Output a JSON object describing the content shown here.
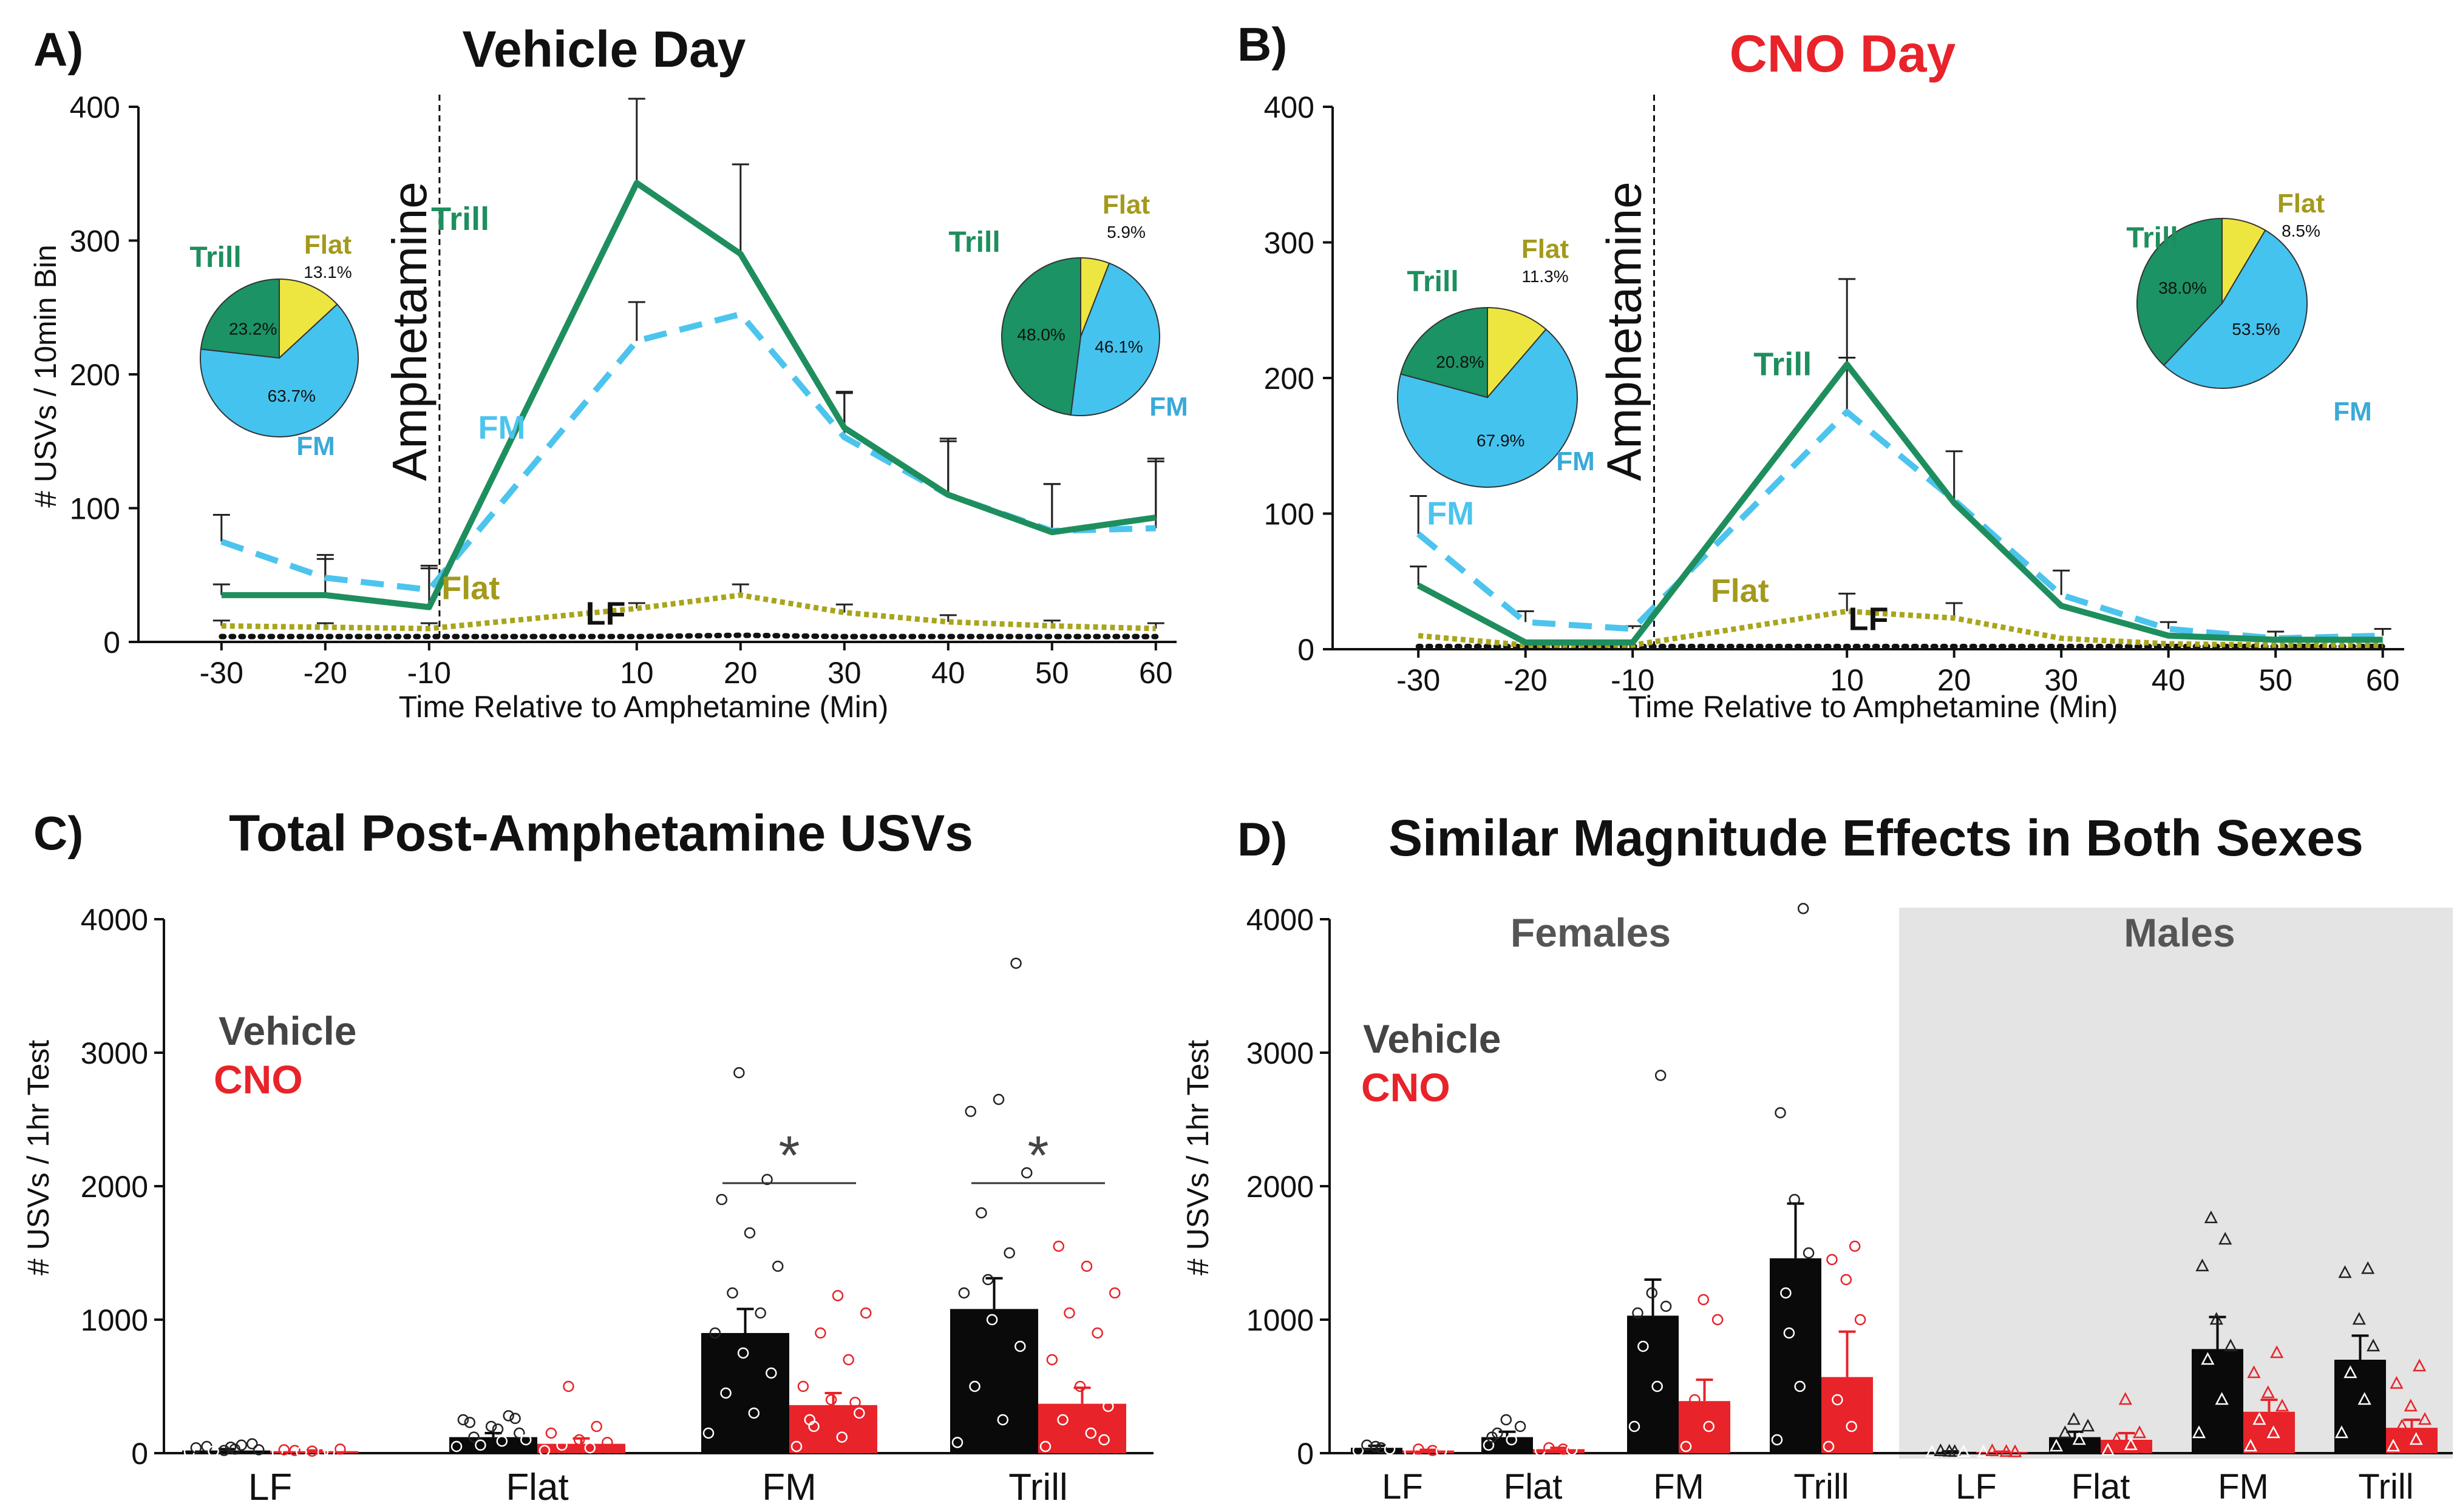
{
  "figure": "USV time-course and totals, Vehicle vs CNO",
  "colors": {
    "trill": "#1f8e5e",
    "fm": "#4cc4ee",
    "flat": "#a9a51c",
    "flat_label": "#a39a1c",
    "lf": "#111111",
    "pie_trill": "#1b9364",
    "pie_fm": "#45c3ef",
    "pie_flat": "#eee640",
    "vehicle": "#0a0a0a",
    "cno": "#e8232a",
    "cno_title": "#e8232a",
    "title": "#111111",
    "males_bg": "#e3e4e3",
    "sex_label": "#555555"
  },
  "chart_data": [
    {
      "panel": "A)",
      "type": "line",
      "title": "Vehicle Day",
      "xlabel": "Time Relative to Amphetamine (Min)",
      "ylabel": "# USVs / 10min Bin",
      "x": [
        -30,
        -20,
        -10,
        10,
        20,
        30,
        40,
        50,
        60
      ],
      "xlim": [
        -38,
        62
      ],
      "ylim": [
        0,
        400
      ],
      "yticks": [
        0,
        100,
        200,
        300,
        400
      ],
      "event": {
        "x": -9,
        "label": "Amphetamine"
      },
      "series": [
        {
          "name": "Trill",
          "values": [
            35,
            35,
            26,
            343,
            290,
            160,
            110,
            82,
            93
          ],
          "errors": [
            8,
            27,
            29,
            63,
            67,
            27,
            40,
            36,
            44
          ],
          "label_x": -7,
          "label_y": 308
        },
        {
          "name": "FM",
          "values": [
            75,
            48,
            39,
            225,
            245,
            153,
            110,
            83,
            85
          ],
          "errors": [
            20,
            17,
            18,
            29,
            0,
            33,
            42,
            35,
            50
          ],
          "label_x": -3,
          "label_y": 152
        },
        {
          "name": "Flat",
          "values": [
            12,
            11,
            10,
            25,
            35,
            22,
            15,
            12,
            10
          ],
          "errors": [
            4,
            3,
            4,
            4,
            8,
            6,
            5,
            4,
            4
          ],
          "label_x": -6,
          "label_y": 32
        },
        {
          "name": "LF",
          "values": [
            4,
            4,
            4,
            4,
            5,
            4,
            4,
            4,
            4
          ],
          "errors": [
            0,
            0,
            0,
            0,
            0,
            0,
            0,
            0,
            0
          ],
          "label_x": 7,
          "label_y": 13
        }
      ],
      "pies": [
        {
          "name": "pre-amphetamine",
          "trill": 23.2,
          "fm": 63.7,
          "flat": 13.1,
          "labels": {
            "trill": "23.2%",
            "fm": "63.7%",
            "flat": "13.1%"
          }
        },
        {
          "name": "post-amphetamine",
          "trill": 48.0,
          "fm": 46.1,
          "flat": 5.9,
          "labels": {
            "trill": "48.0%",
            "fm": "46.1%",
            "flat": "5.9%"
          }
        }
      ]
    },
    {
      "panel": "B)",
      "type": "line",
      "title": "CNO Day",
      "xlabel": "Time Relative to Amphetamine (Min)",
      "ylabel": "",
      "x": [
        -30,
        -20,
        -10,
        10,
        20,
        30,
        40,
        50,
        60
      ],
      "xlim": [
        -38,
        62
      ],
      "ylim": [
        0,
        400
      ],
      "yticks": [
        0,
        100,
        200,
        300,
        400
      ],
      "event": {
        "x": -8,
        "label": "Amphetamine"
      },
      "series": [
        {
          "name": "Trill",
          "values": [
            47,
            5,
            5,
            210,
            108,
            32,
            10,
            7,
            7
          ],
          "errors": [
            14,
            0,
            0,
            63,
            38,
            0,
            0,
            0,
            0
          ],
          "label_x": 4,
          "label_y": 202
        },
        {
          "name": "FM",
          "values": [
            85,
            20,
            15,
            175,
            110,
            40,
            15,
            8,
            10
          ],
          "errors": [
            28,
            8,
            2,
            40,
            0,
            18,
            5,
            5,
            5
          ],
          "label_x": -27,
          "label_y": 92
        },
        {
          "name": "Flat",
          "values": [
            10,
            3,
            3,
            28,
            23,
            8,
            4,
            3,
            3
          ],
          "errors": [
            0,
            0,
            0,
            13,
            11,
            0,
            0,
            0,
            0
          ],
          "label_x": 0,
          "label_y": 35
        },
        {
          "name": "LF",
          "values": [
            2,
            2,
            2,
            2,
            2,
            2,
            2,
            2,
            2
          ],
          "errors": [
            0,
            0,
            0,
            0,
            0,
            0,
            0,
            0,
            0
          ],
          "label_x": 12,
          "label_y": 14
        }
      ],
      "pies": [
        {
          "name": "pre-amphetamine",
          "trill": 20.8,
          "fm": 67.9,
          "flat": 11.3,
          "labels": {
            "trill": "20.8%",
            "fm": "67.9%",
            "flat": "11.3%"
          }
        },
        {
          "name": "post-amphetamine",
          "trill": 38.0,
          "fm": 53.5,
          "flat": 8.5,
          "labels": {
            "trill": "38.0%",
            "fm": "53.5%",
            "flat": "8.5%"
          }
        }
      ]
    },
    {
      "panel": "C)",
      "type": "bar",
      "title": "Total Post-Amphetamine USVs",
      "ylabel": "# USVs / 1hr Test",
      "categories": [
        "LF",
        "Flat",
        "FM",
        "Trill"
      ],
      "ylim": [
        0,
        4000
      ],
      "yticks": [
        0,
        1000,
        2000,
        3000,
        4000
      ],
      "legend": [
        "Vehicle",
        "CNO"
      ],
      "series": [
        {
          "name": "Vehicle",
          "values": [
            20,
            120,
            900,
            1080
          ],
          "errors": [
            10,
            30,
            180,
            230
          ]
        },
        {
          "name": "CNO",
          "values": [
            15,
            70,
            360,
            370
          ],
          "errors": [
            5,
            40,
            90,
            120
          ]
        }
      ],
      "points": {
        "Vehicle": [
          [
            10,
            30,
            50,
            70,
            20,
            40,
            60,
            15,
            25,
            45
          ],
          [
            50,
            90,
            120,
            150,
            200,
            250,
            280,
            60,
            100,
            180,
            230,
            260
          ],
          [
            150,
            300,
            450,
            600,
            750,
            900,
            1050,
            1200,
            1400,
            1650,
            1900,
            2050,
            2850
          ],
          [
            80,
            250,
            500,
            800,
            1000,
            1200,
            1500,
            1800,
            2100,
            2650,
            2560,
            3670,
            1300
          ]
        ],
        "CNO": [
          [
            5,
            10,
            20,
            30,
            15,
            25,
            10,
            8
          ],
          [
            20,
            40,
            60,
            80,
            100,
            150,
            200,
            500
          ],
          [
            50,
            120,
            200,
            300,
            400,
            500,
            700,
            900,
            1050,
            1180,
            250,
            380
          ],
          [
            50,
            150,
            250,
            350,
            500,
            700,
            900,
            1050,
            1200,
            1400,
            1550,
            100
          ]
        ]
      },
      "significance": [
        {
          "category": "FM",
          "label": "*"
        },
        {
          "category": "Trill",
          "label": "*"
        }
      ]
    },
    {
      "panel": "D)",
      "type": "bar",
      "title": "Similar Magnitude Effects in Both Sexes",
      "ylabel": "# USVs / 1hr Test",
      "groups": [
        "Females",
        "Males"
      ],
      "categories": [
        "LF",
        "Flat",
        "FM",
        "Trill"
      ],
      "ylim": [
        0,
        4000
      ],
      "yticks": [
        0,
        1000,
        2000,
        3000,
        4000
      ],
      "legend": [
        "Vehicle",
        "CNO"
      ],
      "series": [
        {
          "name": "Vehicle",
          "group": "Females",
          "values": [
            40,
            120,
            1030,
            1460
          ],
          "errors": [
            15,
            40,
            270,
            410
          ]
        },
        {
          "name": "CNO",
          "group": "Females",
          "values": [
            20,
            30,
            390,
            570
          ],
          "errors": [
            5,
            10,
            160,
            340
          ]
        },
        {
          "name": "Vehicle",
          "group": "Males",
          "values": [
            10,
            120,
            780,
            700
          ],
          "errors": [
            3,
            40,
            240,
            180
          ]
        },
        {
          "name": "CNO",
          "group": "Males",
          "values": [
            8,
            100,
            310,
            190
          ],
          "errors": [
            3,
            50,
            90,
            60
          ]
        }
      ],
      "points": {
        "Females-Vehicle": [
          [
            20,
            40,
            60,
            30,
            50
          ],
          [
            60,
            100,
            150,
            200,
            250,
            120
          ],
          [
            200,
            500,
            800,
            1100,
            1200,
            1050,
            2830
          ],
          [
            100,
            500,
            1200,
            1500,
            1900,
            2550,
            4080,
            900
          ]
        ],
        "Females-CNO": [
          [
            10,
            20,
            30,
            15
          ],
          [
            20,
            30,
            40,
            25
          ],
          [
            50,
            200,
            400,
            1000,
            1150
          ],
          [
            50,
            200,
            400,
            1000,
            1300,
            1450,
            1550
          ]
        ],
        "Males-Vehicle": [
          [
            5,
            10,
            15,
            8,
            12
          ],
          [
            50,
            100,
            150,
            200,
            250
          ],
          [
            150,
            400,
            700,
            800,
            1000,
            1400,
            1600,
            1760
          ],
          [
            150,
            400,
            600,
            800,
            1000,
            1350,
            1380
          ]
        ],
        "Males-CNO": [
          [
            5,
            10,
            15,
            8
          ],
          [
            20,
            60,
            100,
            150,
            400
          ],
          [
            50,
            150,
            250,
            350,
            450,
            600,
            750
          ],
          [
            50,
            100,
            200,
            250,
            350,
            520,
            650
          ]
        ]
      }
    }
  ]
}
